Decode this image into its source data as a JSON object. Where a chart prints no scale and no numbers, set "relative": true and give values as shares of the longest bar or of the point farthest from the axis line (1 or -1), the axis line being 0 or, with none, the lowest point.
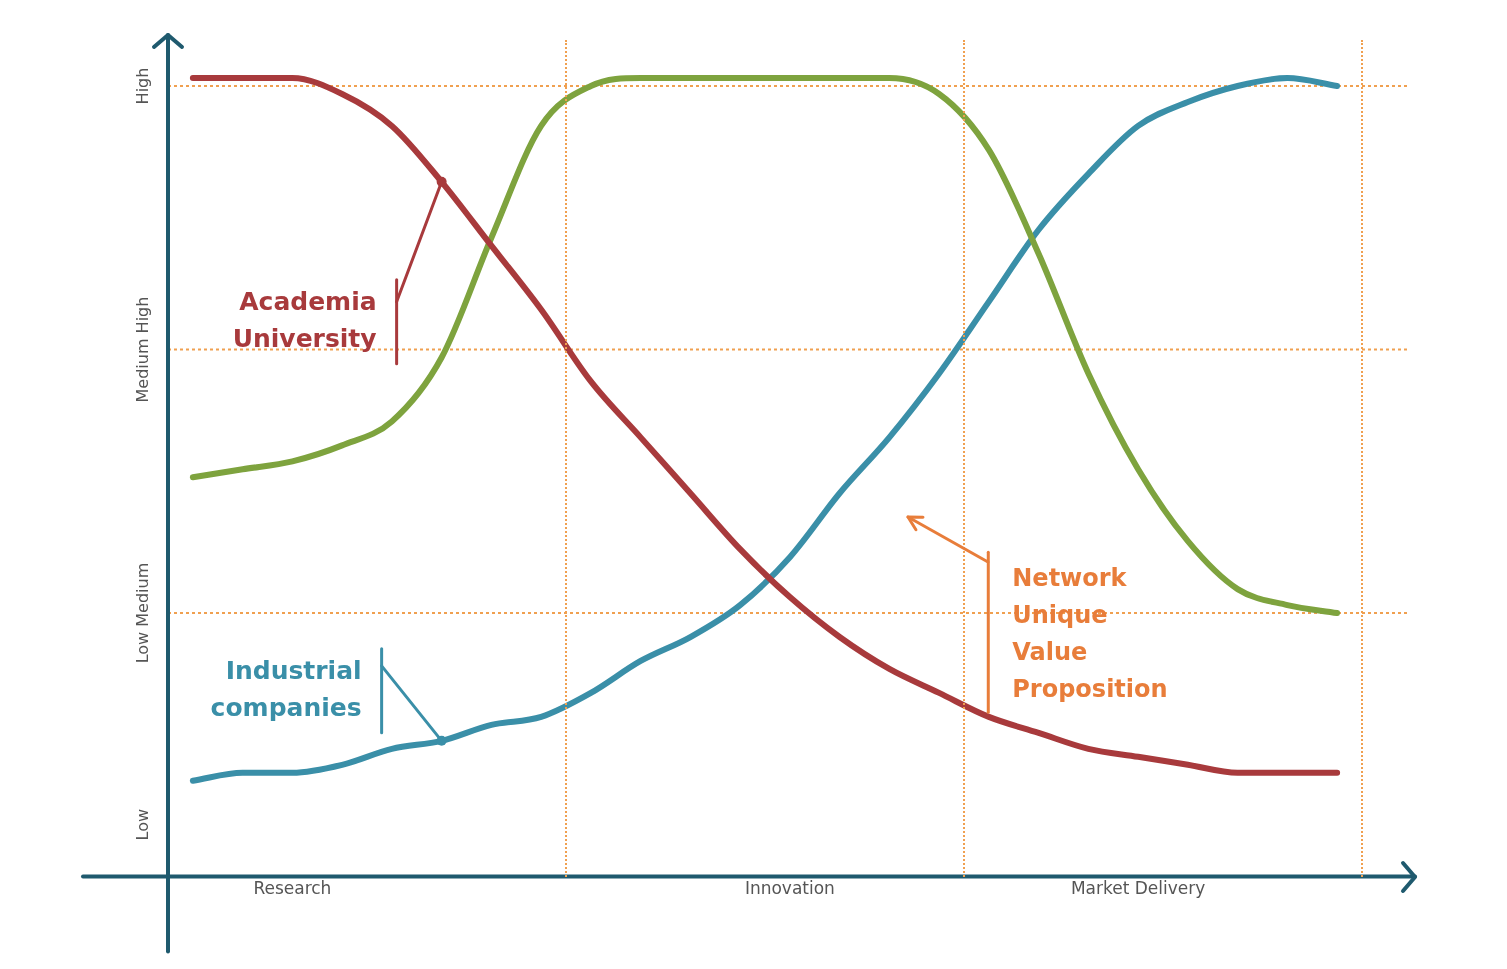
{
  "chart_data": {
    "type": "line",
    "relative": true,
    "categories": [
      null,
      null,
      "Research",
      null,
      null,
      null,
      null,
      null,
      null,
      null,
      null,
      null,
      "Innovation",
      null,
      null,
      null,
      null,
      null,
      null,
      "Market Delivery",
      null,
      null,
      null,
      null
    ],
    "grid": false,
    "legend": false,
    "marker": "none",
    "line_style": "solid",
    "series": [
      {
        "name": "Academia University",
        "color": "#a83a3c",
        "values": [
          1.0,
          1.0,
          1.0,
          0.98,
          0.94,
          0.87,
          0.79,
          0.71,
          0.62,
          0.55,
          0.48,
          0.41,
          0.35,
          0.3,
          0.26,
          0.23,
          0.2,
          0.18,
          0.16,
          0.15,
          0.14,
          0.13,
          0.13,
          0.13
        ]
      },
      {
        "color": "#7ea33e",
        "values": [
          0.5,
          0.51,
          0.52,
          0.54,
          0.57,
          0.65,
          0.8,
          0.94,
          0.99,
          1.0,
          1.0,
          1.0,
          1.0,
          1.0,
          1.0,
          0.98,
          0.91,
          0.78,
          0.63,
          0.51,
          0.42,
          0.36,
          0.34,
          0.33
        ]
      },
      {
        "name": "Industrial companies",
        "color": "#3a8fa8",
        "values": [
          0.12,
          0.13,
          0.13,
          0.14,
          0.16,
          0.17,
          0.19,
          0.2,
          0.23,
          0.27,
          0.3,
          0.34,
          0.4,
          0.48,
          0.55,
          0.63,
          0.72,
          0.81,
          0.88,
          0.94,
          0.97,
          0.99,
          1.0,
          0.99
        ]
      }
    ],
    "ref_lines": [
      {
        "axis": "y",
        "value": 0.33,
        "color": "#f0a050",
        "line_style": "dotted"
      },
      {
        "axis": "y",
        "value": 0.66,
        "color": "#f0a050",
        "line_style": "dotted"
      },
      {
        "axis": "y",
        "value": 0.99,
        "color": "#f0a050",
        "line_style": "dotted"
      }
    ],
    "annotations": [
      "Low",
      "Low Medium",
      "Medium High",
      "High",
      "Network Unique Value Proposition"
    ]
  }
}
